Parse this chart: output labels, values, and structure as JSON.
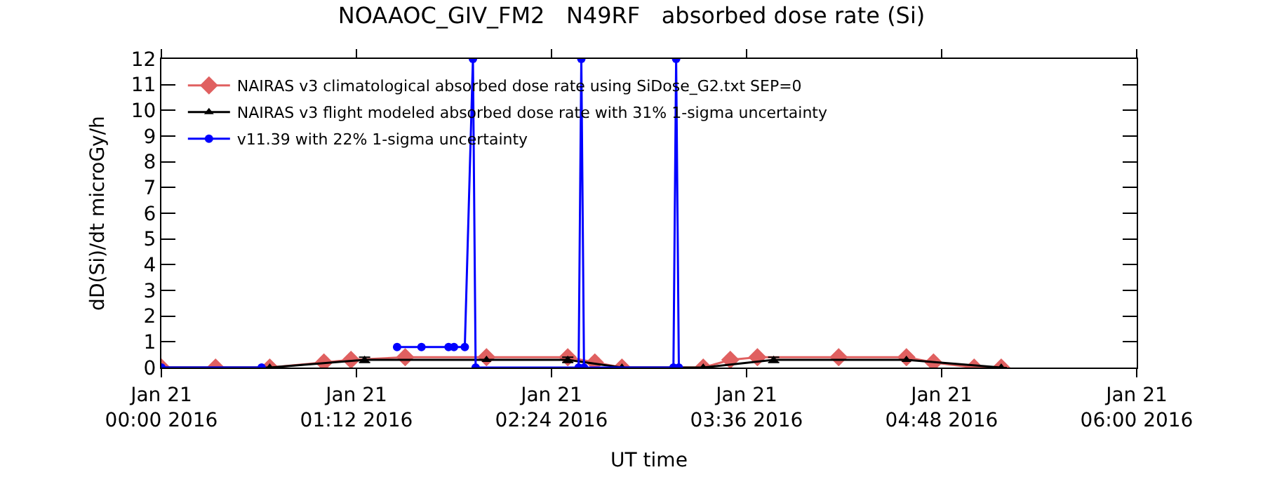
{
  "chart_data": {
    "type": "line",
    "title": "NOAAOC_GIV_FM2   N49RF   absorbed dose rate (Si)",
    "xlabel": "UT time",
    "ylabel": "dD(Si)/dt microGy/h",
    "xlim": [
      "2016-01-21T00:00",
      "2016-01-21T06:00"
    ],
    "xticks": [
      {
        "value": "2016-01-21T00:00",
        "label": "Jan 21\n00:00 2016"
      },
      {
        "value": "2016-01-21T01:12",
        "label": "Jan 21\n01:12 2016"
      },
      {
        "value": "2016-01-21T02:24",
        "label": "Jan 21\n02:24 2016"
      },
      {
        "value": "2016-01-21T03:36",
        "label": "Jan 21\n03:36 2016"
      },
      {
        "value": "2016-01-21T04:48",
        "label": "Jan 21\n04:48 2016"
      },
      {
        "value": "2016-01-21T06:00",
        "label": "Jan 21\n06:00 2016"
      }
    ],
    "ylim": [
      0,
      12
    ],
    "yticks": [
      0,
      1,
      2,
      3,
      4,
      5,
      6,
      7,
      8,
      9,
      10,
      11,
      12
    ],
    "legend": "top left",
    "series": [
      {
        "name": "NAIRAS v3 climatological absorbed dose rate using SiDose_G2.txt SEP=0",
        "color": "#e06060",
        "marker": "diamond",
        "x": [
          "2016-01-21T00:00",
          "2016-01-21T00:20",
          "2016-01-21T00:40",
          "2016-01-21T01:00",
          "2016-01-21T01:10",
          "2016-01-21T01:30",
          "2016-01-21T02:00",
          "2016-01-21T02:30",
          "2016-01-21T02:40",
          "2016-01-21T02:50",
          "2016-01-21T03:20",
          "2016-01-21T03:30",
          "2016-01-21T03:40",
          "2016-01-21T04:10",
          "2016-01-21T04:35",
          "2016-01-21T04:45",
          "2016-01-21T05:00",
          "2016-01-21T05:10"
        ],
        "values": [
          0.0,
          0.0,
          0.0,
          0.2,
          0.3,
          0.4,
          0.4,
          0.4,
          0.2,
          0.0,
          0.0,
          0.3,
          0.4,
          0.4,
          0.4,
          0.2,
          0.0,
          0.0
        ]
      },
      {
        "name": "NAIRAS v3 flight modeled absorbed dose rate with 31% 1-sigma uncertainty",
        "color": "#000000",
        "marker": "triangle",
        "x": [
          "2016-01-21T00:00",
          "2016-01-21T00:40",
          "2016-01-21T01:15",
          "2016-01-21T02:00",
          "2016-01-21T02:30",
          "2016-01-21T02:50",
          "2016-01-21T03:20",
          "2016-01-21T03:46",
          "2016-01-21T04:35",
          "2016-01-21T05:10"
        ],
        "values": [
          0.0,
          0.0,
          0.3,
          0.3,
          0.3,
          0.0,
          0.0,
          0.3,
          0.3,
          0.0
        ],
        "errors": [
          null,
          null,
          0.1,
          null,
          0.1,
          null,
          null,
          0.1,
          null,
          null
        ]
      },
      {
        "name": "v11.39 with 22% 1-sigma uncertainty",
        "color": "#0000ff",
        "marker": "circle",
        "x": [
          "2016-01-21T00:00",
          "2016-01-21T00:37",
          "2016-01-21T00:50",
          "2016-01-21T01:27",
          "2016-01-21T01:36",
          "2016-01-21T01:46",
          "2016-01-21T01:47",
          "2016-01-21T01:48",
          "2016-01-21T01:52",
          "2016-01-21T01:55",
          "2016-01-21T01:56",
          "2016-01-21T02:34",
          "2016-01-21T02:35",
          "2016-01-21T02:36",
          "2016-01-21T03:09",
          "2016-01-21T03:10",
          "2016-01-21T03:11"
        ],
        "values": [
          0.0,
          0.0,
          null,
          0.8,
          0.8,
          0.8,
          null,
          0.8,
          0.8,
          12,
          0.0,
          0.0,
          12,
          0.0,
          0.0,
          12,
          0.0
        ]
      }
    ]
  }
}
